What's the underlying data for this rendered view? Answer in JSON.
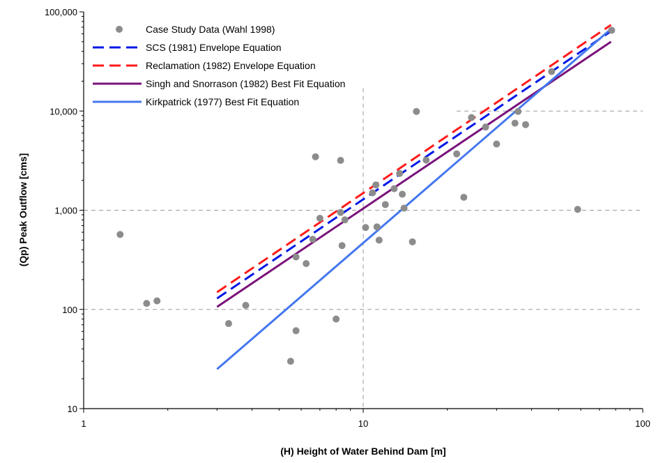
{
  "chart_data": {
    "type": "scatter",
    "xlabel": "(H) Height of Water Behind Dam [m]",
    "ylabel": "(Qp) Peak Outflow [cms]",
    "xscale": "log",
    "yscale": "log",
    "xlim": [
      1,
      100
    ],
    "ylim": [
      10,
      100000
    ],
    "x_ticks": [
      1,
      10,
      100
    ],
    "x_tick_labels": [
      "1",
      "10",
      "100"
    ],
    "y_ticks": [
      10,
      100,
      1000,
      10000,
      100000
    ],
    "y_tick_labels": [
      "10",
      "100",
      "1,000",
      "10,000",
      "100,000"
    ],
    "grid": "dashed gray lines at x=10 and y=100, 1,000, 10,000 (right portion)",
    "legend_position": "top-left",
    "points": {
      "name": "Case Study Data (Wahl 1998)",
      "color": "#8c8c8c",
      "x": [
        1.35,
        1.68,
        1.83,
        3.3,
        3.8,
        5.5,
        5.75,
        5.75,
        6.25,
        6.6,
        6.75,
        7.0,
        8.0,
        8.3,
        8.3,
        8.4,
        8.6,
        10.2,
        10.8,
        11.1,
        11.2,
        11.4,
        12.0,
        12.9,
        13.5,
        13.8,
        14.0,
        15.0,
        15.5,
        16.8,
        21.6,
        22.9,
        24.4,
        27.4,
        30.0,
        34.9,
        35.8,
        38.1,
        47.2,
        58.5,
        77.4
      ],
      "y": [
        570,
        115,
        122,
        72,
        110,
        30,
        61,
        338,
        290,
        510,
        3460,
        830,
        80,
        3180,
        950,
        440,
        800,
        670,
        1500,
        1800,
        680,
        500,
        1140,
        1650,
        2350,
        1450,
        1050,
        480,
        9900,
        3200,
        3700,
        1350,
        8600,
        6900,
        4650,
        7550,
        9900,
        7300,
        25000,
        1020,
        65200
      ]
    },
    "series": [
      {
        "name": "SCS (1981) Envelope Equation",
        "color": "#0018e6",
        "style": "dashed",
        "x": [
          3,
          77
        ],
        "y": [
          129,
          63800
        ]
      },
      {
        "name": "Reclamation (1982) Envelope Equation",
        "color": "#ff1a1a",
        "style": "dashed",
        "x": [
          3,
          77
        ],
        "y": [
          149,
          73900
        ]
      },
      {
        "name": "Singh and Snorrason (1982) Best Fit Equation",
        "color": "#7a117a",
        "style": "solid",
        "x": [
          3,
          77
        ],
        "y": [
          106,
          50000
        ]
      },
      {
        "name": "Kirkpatrick (1977) Best Fit Equation",
        "color": "#4477ee",
        "style": "solid",
        "x": [
          3,
          77
        ],
        "y": [
          25,
          67300
        ]
      }
    ]
  }
}
